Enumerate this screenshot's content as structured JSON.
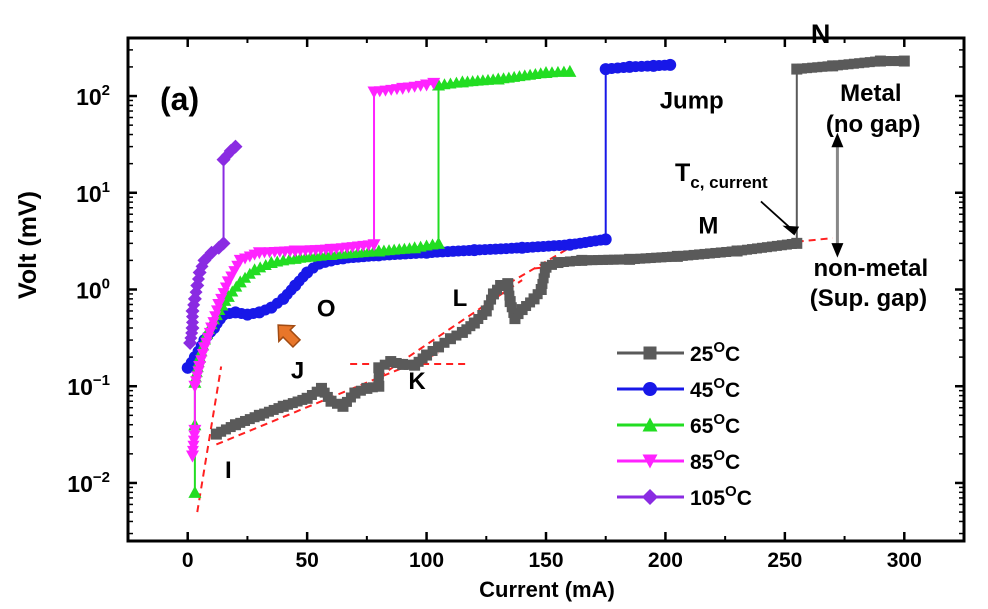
{
  "chart_data": {
    "type": "scatter",
    "panel_label": "(a)",
    "xlabel": "Current (mA)",
    "ylabel": "Volt (mV)",
    "xlim": [
      -25,
      325
    ],
    "ylim_log10": [
      -2.6,
      2.6
    ],
    "yscale": "log",
    "x_ticks": [
      "0",
      "50",
      "100",
      "150",
      "200",
      "250",
      "300"
    ],
    "x_tick_values": [
      0,
      50,
      100,
      150,
      200,
      250,
      300
    ],
    "y_ticks": [
      {
        "base": "10",
        "exp": "−2",
        "value": -2
      },
      {
        "base": "10",
        "exp": "−1",
        "value": -1
      },
      {
        "base": "10",
        "exp": "0",
        "value": 0
      },
      {
        "base": "10",
        "exp": "1",
        "value": 1
      },
      {
        "base": "10",
        "exp": "2",
        "value": 2
      }
    ],
    "series": [
      {
        "name": "25",
        "unit": "OC",
        "color": "#5a5a5a",
        "marker": "square",
        "points": [
          [
            12,
            0.032
          ],
          [
            20,
            0.04
          ],
          [
            30,
            0.05
          ],
          [
            40,
            0.062
          ],
          [
            50,
            0.075
          ],
          [
            56,
            0.095
          ],
          [
            60,
            0.07
          ],
          [
            65,
            0.062
          ],
          [
            70,
            0.085
          ],
          [
            75,
            0.095
          ],
          [
            80,
            0.1
          ],
          [
            80,
            0.155
          ],
          [
            85,
            0.18
          ],
          [
            90,
            0.168
          ],
          [
            95,
            0.165
          ],
          [
            100,
            0.21
          ],
          [
            105,
            0.255
          ],
          [
            110,
            0.31
          ],
          [
            115,
            0.36
          ],
          [
            120,
            0.45
          ],
          [
            125,
            0.6
          ],
          [
            128,
            0.9
          ],
          [
            131,
            1.1
          ],
          [
            134,
            1.15
          ],
          [
            135,
            0.75
          ],
          [
            137,
            0.5
          ],
          [
            140,
            0.62
          ],
          [
            145,
            0.8
          ],
          [
            148,
            1.0
          ],
          [
            150,
            1.7
          ],
          [
            155,
            1.9
          ],
          [
            165,
            2.0
          ],
          [
            185,
            2.05
          ],
          [
            205,
            2.2
          ],
          [
            230,
            2.5
          ],
          [
            255,
            3.0
          ],
          [
            255,
            190
          ],
          [
            270,
            205
          ],
          [
            290,
            230
          ],
          [
            300,
            230
          ]
        ]
      },
      {
        "name": "45",
        "unit": "OC",
        "color": "#1818e8",
        "marker": "circle",
        "points": [
          [
            0,
            0.155
          ],
          [
            3,
            0.2
          ],
          [
            7,
            0.3
          ],
          [
            11,
            0.4
          ],
          [
            15,
            0.55
          ],
          [
            20,
            0.58
          ],
          [
            25,
            0.55
          ],
          [
            30,
            0.58
          ],
          [
            35,
            0.65
          ],
          [
            40,
            0.8
          ],
          [
            45,
            1.1
          ],
          [
            50,
            1.5
          ],
          [
            55,
            1.85
          ],
          [
            65,
            2.1
          ],
          [
            80,
            2.25
          ],
          [
            100,
            2.4
          ],
          [
            120,
            2.55
          ],
          [
            140,
            2.7
          ],
          [
            160,
            2.9
          ],
          [
            175,
            3.3
          ],
          [
            175,
            190
          ],
          [
            185,
            200
          ],
          [
            195,
            205
          ],
          [
            202,
            210
          ]
        ]
      },
      {
        "name": "65",
        "unit": "OC",
        "color": "#22dd22",
        "marker": "triangle-up",
        "points": [
          [
            3,
            0.008
          ],
          [
            3,
            0.04
          ],
          [
            3,
            0.11
          ],
          [
            5,
            0.2
          ],
          [
            8,
            0.35
          ],
          [
            12,
            0.55
          ],
          [
            17,
            0.85
          ],
          [
            22,
            1.2
          ],
          [
            28,
            1.6
          ],
          [
            35,
            1.9
          ],
          [
            45,
            2.1
          ],
          [
            60,
            2.3
          ],
          [
            80,
            2.5
          ],
          [
            95,
            2.7
          ],
          [
            105,
            3.0
          ],
          [
            105,
            130
          ],
          [
            115,
            140
          ],
          [
            130,
            150
          ],
          [
            150,
            175
          ],
          [
            160,
            180
          ]
        ]
      },
      {
        "name": "85",
        "unit": "OC",
        "color": "#ff22ff",
        "marker": "triangle-down",
        "points": [
          [
            2,
            0.019
          ],
          [
            3,
            0.035
          ],
          [
            3,
            0.1
          ],
          [
            5,
            0.16
          ],
          [
            7,
            0.25
          ],
          [
            10,
            0.4
          ],
          [
            13,
            0.7
          ],
          [
            17,
            1.2
          ],
          [
            22,
            2.0
          ],
          [
            30,
            2.4
          ],
          [
            45,
            2.5
          ],
          [
            60,
            2.6
          ],
          [
            78,
            2.9
          ],
          [
            78,
            110
          ],
          [
            90,
            120
          ],
          [
            100,
            130
          ],
          [
            103,
            135
          ]
        ]
      },
      {
        "name": "105",
        "unit": "OC",
        "color": "#8a2be2",
        "marker": "diamond",
        "points": [
          [
            1,
            0.28
          ],
          [
            2,
            0.4
          ],
          [
            2,
            0.6
          ],
          [
            3,
            0.8
          ],
          [
            4,
            1.1
          ],
          [
            5,
            1.5
          ],
          [
            7,
            2.0
          ],
          [
            10,
            2.4
          ],
          [
            13,
            2.7
          ],
          [
            15,
            3.0
          ],
          [
            15,
            22
          ],
          [
            18,
            27
          ],
          [
            20,
            30
          ]
        ]
      }
    ],
    "fit_lines": [
      {
        "x1": 4,
        "v1": 0.005,
        "x2": 14,
        "v2": 0.16
      },
      {
        "x1": 12,
        "v1": 0.025,
        "x2": 105,
        "v2": 0.22
      },
      {
        "x1": 68,
        "v1": 0.17,
        "x2": 118,
        "v2": 0.17
      },
      {
        "x1": 80,
        "v1": 0.125,
        "x2": 140,
        "v2": 1.25
      },
      {
        "x1": 130,
        "v1": 1.0,
        "x2": 165,
        "v2": 3.2
      },
      {
        "x1": 145,
        "v1": 1.65,
        "x2": 270,
        "v2": 3.4
      }
    ],
    "annotations": [
      {
        "key": "I",
        "text": "I",
        "x": 17,
        "logy": -1.95,
        "color": "#000000"
      },
      {
        "key": "J",
        "text": "J",
        "x": 46,
        "logy": -0.92,
        "color": "#000000"
      },
      {
        "key": "K",
        "text": "K",
        "x": 96,
        "logy": -1.03,
        "color": "#000000"
      },
      {
        "key": "L",
        "text": "L",
        "x": 114,
        "logy": -0.17,
        "color": "#000000"
      },
      {
        "key": "M",
        "text": "M",
        "x": 218,
        "logy": 0.58,
        "color": "#000000"
      },
      {
        "key": "N",
        "text": "N",
        "x": 265,
        "logy": 2.55,
        "color": "#ff0000"
      },
      {
        "key": "O",
        "text": "O",
        "x": 58,
        "logy": -0.28,
        "color": "#000000"
      },
      {
        "key": "jump",
        "text": "Jump",
        "x": 211,
        "logy": 1.87,
        "color": "#000000"
      },
      {
        "key": "metal1",
        "text": "Metal",
        "x": 286,
        "logy": 1.95,
        "color": "#000000"
      },
      {
        "key": "metal2",
        "text": "(no gap)",
        "x": 287,
        "logy": 1.63,
        "color": "#000000"
      },
      {
        "key": "nonmetal1",
        "text": "non-metal",
        "x": 286,
        "logy": 0.14,
        "color": "#000000"
      },
      {
        "key": "nonmetal2",
        "text": "(Sup. gap)",
        "x": 285,
        "logy": -0.17,
        "color": "#000000"
      }
    ],
    "tc_label": {
      "main": "T",
      "sub": "c, current"
    },
    "legend": {
      "position": "bottom-right",
      "entries": [
        {
          "label": "25",
          "sup": "O",
          "unit": "C"
        },
        {
          "label": "45",
          "sup": "O",
          "unit": "C"
        },
        {
          "label": "65",
          "sup": "O",
          "unit": "C"
        },
        {
          "label": "85",
          "sup": "O",
          "unit": "C"
        },
        {
          "label": "105",
          "sup": "O",
          "unit": "C"
        }
      ]
    }
  }
}
